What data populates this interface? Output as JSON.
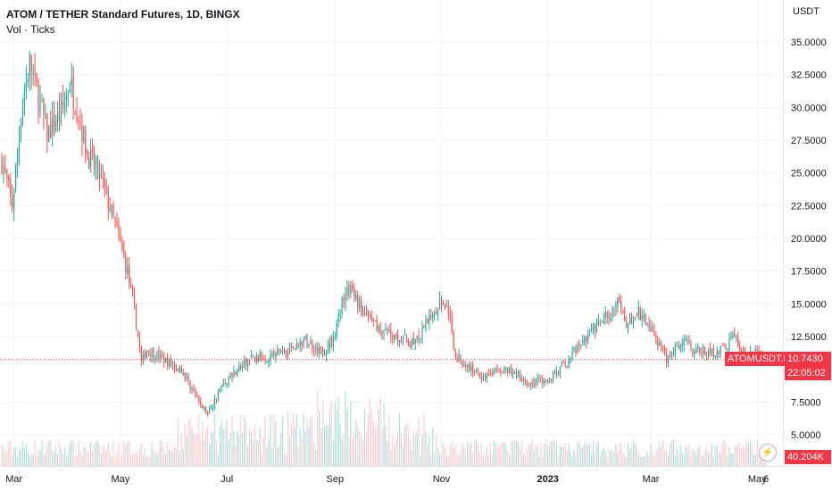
{
  "header": {
    "title": "ATOM / TETHER Standard Futures, 1D, BINGX",
    "volume_label": "Vol · Ticks"
  },
  "axis": {
    "unit": "USDT",
    "y_ticks": [
      "35.0000",
      "32.5000",
      "30.0000",
      "27.5000",
      "25.0000",
      "22.5000",
      "20.0000",
      "17.5000",
      "15.0000",
      "12.5000",
      "7.5000",
      "5.0000"
    ],
    "x_ticks": [
      "Mar",
      "May",
      "Jul",
      "Sep",
      "Nov",
      "2023",
      "Mar",
      "May",
      "6"
    ]
  },
  "badges": {
    "symbol": "ATOMUSDT.PS",
    "last_price": "10.7430",
    "countdown": "22:05:02",
    "volume": "40.204K"
  },
  "colors": {
    "up": "#26a69a",
    "down": "#ef5350",
    "up_volume": "#b2dfdb",
    "down_volume": "#ffcdd2",
    "price_line": "#f23645",
    "grid": "#f0f3fa"
  },
  "icons": {
    "lightning": "lightning-icon"
  },
  "chart_data": {
    "type": "candlestick",
    "title": "ATOM / TETHER Standard Futures, 1D, BINGX",
    "ylabel": "USDT",
    "ylim": [
      4.0,
      36.5
    ],
    "last_price": 10.743,
    "x_range": [
      "2022-02-22",
      "2023-05-06"
    ],
    "close_anchors": [
      [
        "2022-02-22",
        26.0
      ],
      [
        "2022-02-28",
        22.5
      ],
      [
        "2022-03-05",
        29.5
      ],
      [
        "2022-03-10",
        33.5
      ],
      [
        "2022-03-20",
        28.0
      ],
      [
        "2022-03-28",
        29.5
      ],
      [
        "2022-04-02",
        32.0
      ],
      [
        "2022-04-07",
        29.5
      ],
      [
        "2022-04-12",
        26.5
      ],
      [
        "2022-04-20",
        24.5
      ],
      [
        "2022-04-28",
        21.0
      ],
      [
        "2022-05-05",
        17.5
      ],
      [
        "2022-05-10",
        13.5
      ],
      [
        "2022-05-13",
        10.5
      ],
      [
        "2022-05-16",
        11.5
      ],
      [
        "2022-05-25",
        10.8
      ],
      [
        "2022-06-05",
        10.0
      ],
      [
        "2022-06-15",
        7.5
      ],
      [
        "2022-06-20",
        6.6
      ],
      [
        "2022-06-27",
        8.5
      ],
      [
        "2022-07-05",
        9.8
      ],
      [
        "2022-07-15",
        10.8
      ],
      [
        "2022-07-25",
        11.0
      ],
      [
        "2022-08-05",
        11.5
      ],
      [
        "2022-08-15",
        12.2
      ],
      [
        "2022-08-25",
        11.3
      ],
      [
        "2022-09-01",
        12.5
      ],
      [
        "2022-09-05",
        15.5
      ],
      [
        "2022-09-10",
        16.2
      ],
      [
        "2022-09-18",
        14.0
      ],
      [
        "2022-09-28",
        13.0
      ],
      [
        "2022-10-08",
        12.5
      ],
      [
        "2022-10-15",
        12.0
      ],
      [
        "2022-10-20",
        12.5
      ],
      [
        "2022-10-26",
        14.3
      ],
      [
        "2022-11-01",
        15.2
      ],
      [
        "2022-11-05",
        14.5
      ],
      [
        "2022-11-09",
        11.0
      ],
      [
        "2022-11-15",
        10.3
      ],
      [
        "2022-11-25",
        9.5
      ],
      [
        "2022-12-05",
        10.0
      ],
      [
        "2022-12-15",
        9.5
      ],
      [
        "2022-12-22",
        8.9
      ],
      [
        "2023-01-01",
        9.3
      ],
      [
        "2023-01-10",
        10.2
      ],
      [
        "2023-01-16",
        11.3
      ],
      [
        "2023-01-25",
        12.8
      ],
      [
        "2023-02-05",
        14.2
      ],
      [
        "2023-02-10",
        15.0
      ],
      [
        "2023-02-15",
        13.5
      ],
      [
        "2023-02-22",
        14.3
      ],
      [
        "2023-03-01",
        13.0
      ],
      [
        "2023-03-10",
        10.8
      ],
      [
        "2023-03-15",
        11.5
      ],
      [
        "2023-03-20",
        12.5
      ],
      [
        "2023-03-25",
        11.5
      ],
      [
        "2023-04-05",
        11.2
      ],
      [
        "2023-04-14",
        11.8
      ],
      [
        "2023-04-18",
        12.8
      ],
      [
        "2023-04-22",
        11.0
      ],
      [
        "2023-04-28",
        11.3
      ],
      [
        "2023-05-06",
        10.743
      ]
    ]
  }
}
